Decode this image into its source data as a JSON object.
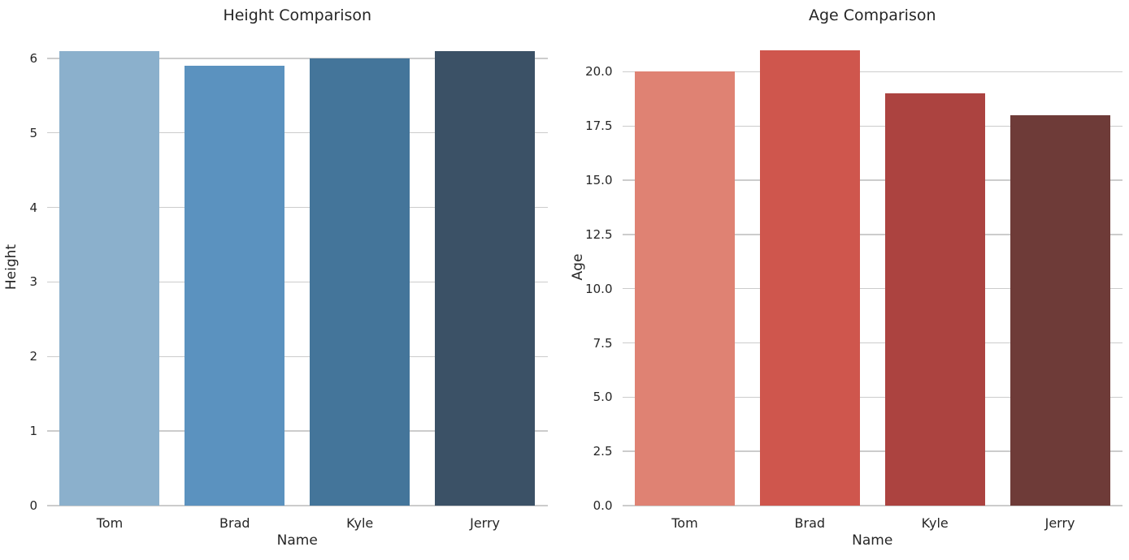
{
  "figure": {
    "background": "#ffffff",
    "text_color": "#262626",
    "grid_color": "#cccccc"
  },
  "chart_data": [
    {
      "type": "bar",
      "title": "Height Comparison",
      "xlabel": "Name",
      "ylabel": "Height",
      "categories": [
        "Tom",
        "Brad",
        "Kyle",
        "Jerry"
      ],
      "values": [
        6.1,
        5.9,
        6.0,
        6.1
      ],
      "bar_colors": [
        "#8bb0cc",
        "#5b92bf",
        "#44759a",
        "#3b5166"
      ],
      "ylim": [
        0,
        6.4
      ],
      "yticks": [
        0,
        1,
        2,
        3,
        4,
        5,
        6
      ],
      "ytick_labels": [
        "0",
        "1",
        "2",
        "3",
        "4",
        "5",
        "6"
      ],
      "grid": "horizontal",
      "legend": "none"
    },
    {
      "type": "bar",
      "title": "Age Comparison",
      "xlabel": "Name",
      "ylabel": "Age",
      "categories": [
        "Tom",
        "Brad",
        "Kyle",
        "Jerry"
      ],
      "values": [
        20,
        21,
        19,
        18
      ],
      "bar_colors": [
        "#df8273",
        "#cf564d",
        "#ac4340",
        "#6e3b38"
      ],
      "ylim": [
        0,
        22
      ],
      "yticks": [
        0,
        2.5,
        5,
        7.5,
        10,
        12.5,
        15,
        17.5,
        20
      ],
      "ytick_labels": [
        "0.0",
        "2.5",
        "5.0",
        "7.5",
        "10.0",
        "12.5",
        "15.0",
        "17.5",
        "20.0"
      ],
      "grid": "horizontal",
      "legend": "none"
    }
  ]
}
